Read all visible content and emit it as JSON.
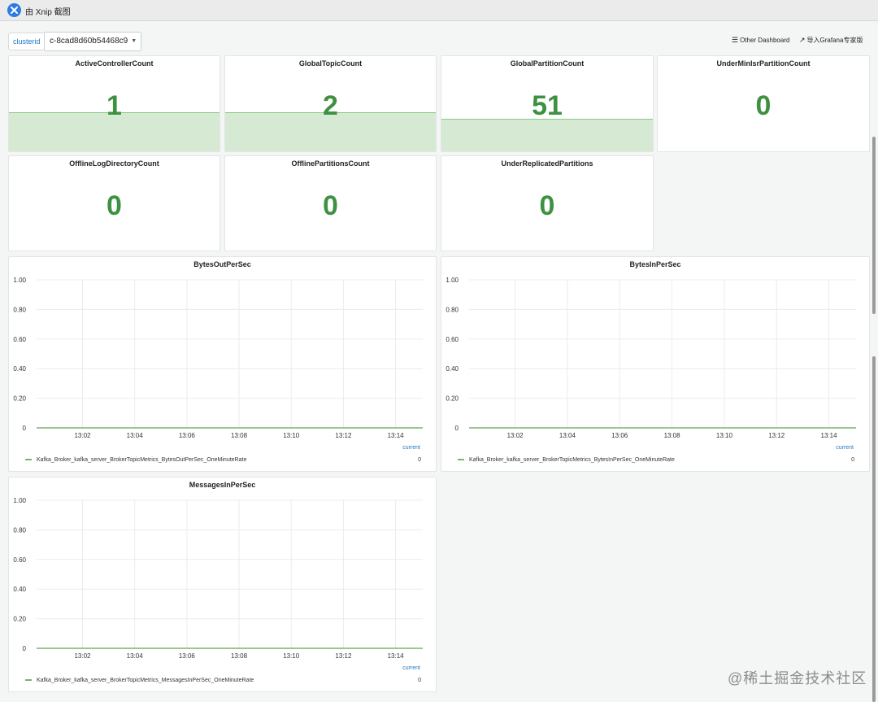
{
  "titlebar": {
    "title": "由 Xnip 截图"
  },
  "toolbar": {
    "variable_label": "clusterid",
    "variable_value": "c-8cad8d60b54468c9",
    "other_dashboard": "Other Dashboard",
    "import_grafana": "导入Grafana专家版"
  },
  "stat_panels": [
    {
      "title": "ActiveControllerCount",
      "value": "1",
      "spark_level": 0.4
    },
    {
      "title": "GlobalTopicCount",
      "value": "2",
      "spark_level": 0.4
    },
    {
      "title": "GlobalPartitionCount",
      "value": "51",
      "spark_level": 0.33
    },
    {
      "title": "UnderMinIsrPartitionCount",
      "value": "0",
      "spark_level": null
    },
    {
      "title": "OfflineLogDirectoryCount",
      "value": "0",
      "spark_level": null
    },
    {
      "title": "OfflinePartitionsCount",
      "value": "0",
      "spark_level": null
    },
    {
      "title": "UnderReplicatedPartitions",
      "value": "0",
      "spark_level": null
    }
  ],
  "chart_data": [
    {
      "type": "line",
      "title": "BytesOutPerSec",
      "y_ticks": [
        "1.00",
        "0.80",
        "0.60",
        "0.40",
        "0.20",
        "0"
      ],
      "x_ticks": [
        "13:02",
        "13:04",
        "13:06",
        "13:08",
        "13:10",
        "13:12",
        "13:14"
      ],
      "ylim": [
        0,
        1
      ],
      "series": [
        {
          "name": "Kafka_Broker_kafka_server_BrokerTopicMetrics_BytesOutPerSec_OneMinuteRate",
          "values": [
            0,
            0,
            0,
            0,
            0,
            0,
            0
          ],
          "current": "0"
        }
      ],
      "legend_header": "current",
      "grid": true
    },
    {
      "type": "line",
      "title": "BytesInPerSec",
      "y_ticks": [
        "1.00",
        "0.80",
        "0.60",
        "0.40",
        "0.20",
        "0"
      ],
      "x_ticks": [
        "13:02",
        "13:04",
        "13:06",
        "13:08",
        "13:10",
        "13:12",
        "13:14"
      ],
      "ylim": [
        0,
        1
      ],
      "series": [
        {
          "name": "Kafka_Broker_kafka_server_BrokerTopicMetrics_BytesInPerSec_OneMinuteRate",
          "values": [
            0,
            0,
            0,
            0,
            0,
            0,
            0
          ],
          "current": "0"
        }
      ],
      "legend_header": "current",
      "grid": true
    },
    {
      "type": "line",
      "title": "MessagesInPerSec",
      "y_ticks": [
        "1.00",
        "0.80",
        "0.60",
        "0.40",
        "0.20",
        "0"
      ],
      "x_ticks": [
        "13:02",
        "13:04",
        "13:06",
        "13:08",
        "13:10",
        "13:12",
        "13:14"
      ],
      "ylim": [
        0,
        1
      ],
      "series": [
        {
          "name": "Kafka_Broker_kafka_server_BrokerTopicMetrics_MessagesInPerSec_OneMinuteRate",
          "values": [
            0,
            0,
            0,
            0,
            0,
            0,
            0
          ],
          "current": "0"
        }
      ],
      "legend_header": "current",
      "grid": true
    }
  ],
  "watermark": "@稀土掘金技术社区",
  "colors": {
    "stat_green": "#3f9142",
    "series_green": "#7eb26d",
    "link_blue": "#1f78c1"
  }
}
